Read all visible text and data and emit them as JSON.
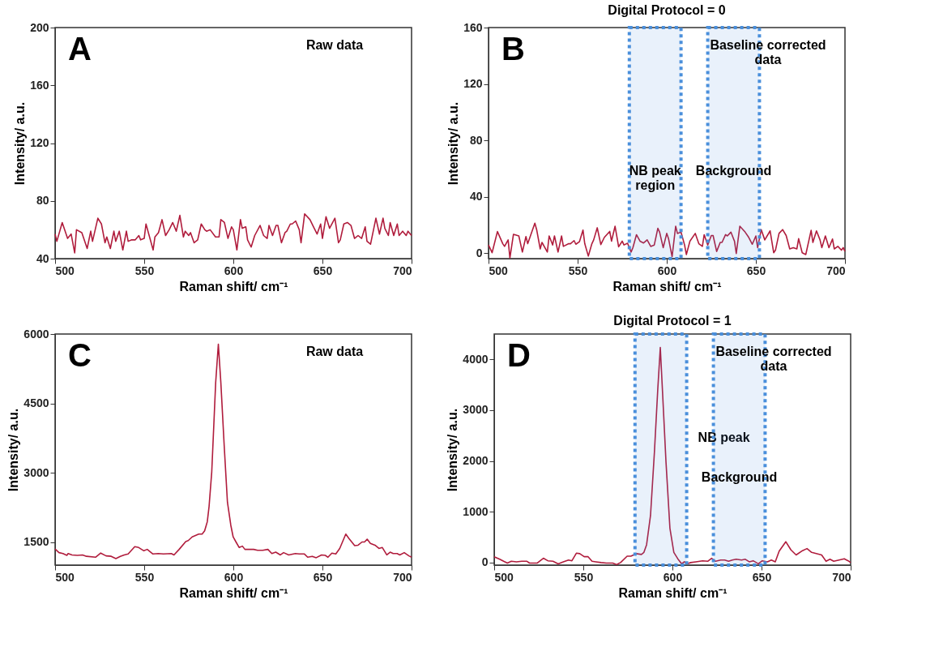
{
  "chart_data": [
    {
      "type": "line",
      "xlabel": "Raman shift/ cm⁻¹",
      "ylabel": "Intensity/ a.u.",
      "xlim": [
        500,
        700
      ],
      "xticks": [
        500,
        550,
        600,
        650,
        700
      ],
      "ylim": [
        40,
        200
      ],
      "yticks": [
        40,
        80,
        120,
        160,
        200
      ],
      "grid": false,
      "annotations": [
        "A",
        "Raw data"
      ],
      "x": [
        500,
        501,
        504,
        507,
        509,
        511,
        512,
        515,
        518,
        520,
        521,
        524,
        526,
        528,
        529,
        531,
        533,
        534,
        536,
        538,
        540,
        541,
        543,
        545,
        547,
        548,
        550,
        551,
        553,
        555,
        556,
        558,
        560,
        562,
        564,
        566,
        568,
        570,
        572,
        573,
        575,
        576,
        578,
        580,
        582,
        584,
        585,
        587,
        590,
        592,
        593,
        595,
        597,
        599,
        600,
        602,
        604,
        605,
        607,
        608,
        610,
        612,
        615,
        617,
        619,
        620,
        622,
        624,
        625,
        627,
        629,
        630,
        632,
        633,
        635,
        637,
        638,
        640,
        643,
        645,
        647,
        649,
        650,
        652,
        654,
        657,
        659,
        660,
        662,
        664,
        666,
        668,
        670,
        672,
        674,
        675,
        677,
        680,
        682,
        684,
        685,
        687,
        688,
        690,
        692,
        693,
        695,
        697,
        698,
        700
      ],
      "series": [
        {
          "color": "#b01c3c",
          "values": [
            57,
            52,
            65,
            54,
            57,
            44,
            60,
            58,
            47,
            59,
            52,
            68,
            64,
            51,
            55,
            47,
            59,
            52,
            59,
            46,
            59,
            52,
            53,
            53,
            56,
            53,
            54,
            64,
            55,
            46,
            55,
            58,
            67,
            56,
            60,
            65,
            59,
            70,
            55,
            59,
            56,
            58,
            51,
            53,
            64,
            60,
            59,
            60,
            55,
            55,
            67,
            65,
            54,
            62,
            60,
            46,
            67,
            61,
            62,
            53,
            48,
            56,
            63,
            56,
            54,
            63,
            56,
            63,
            63,
            51,
            58,
            59,
            64,
            64,
            66,
            60,
            51,
            71,
            67,
            62,
            57,
            64,
            54,
            69,
            61,
            68,
            51,
            53,
            64,
            65,
            63,
            54,
            56,
            54,
            62,
            52,
            50,
            68,
            57,
            68,
            61,
            56,
            65,
            56,
            64,
            56,
            59,
            56,
            59,
            56
          ]
        }
      ]
    },
    {
      "type": "line",
      "title": "Digital Protocol = 0",
      "xlabel": "Raman shift/ cm⁻¹",
      "ylabel": "Intensity/ a.u.",
      "xlim": [
        500,
        700
      ],
      "xticks": [
        500,
        550,
        600,
        650,
        700
      ],
      "ylim": [
        -4,
        160
      ],
      "yticks": [
        0,
        40,
        80,
        120,
        160
      ],
      "grid": false,
      "annotations": [
        "B",
        "Baseline corrected\ndata"
      ],
      "bands": [
        {
          "axis": "x",
          "from": 579,
          "to": 608,
          "color": "#4a8fdb",
          "label": "NB peak\nregion"
        },
        {
          "axis": "x",
          "from": 623,
          "to": 652,
          "color": "#4a8fdb",
          "label": "Background"
        }
      ],
      "x": [
        500,
        502,
        505,
        508,
        509,
        511,
        512,
        514,
        517,
        519,
        521,
        522,
        526,
        527,
        529,
        530,
        533,
        534,
        536,
        537,
        539,
        541,
        542,
        545,
        546,
        548,
        549,
        551,
        553,
        554,
        556,
        558,
        559,
        561,
        563,
        565,
        568,
        569,
        571,
        573,
        575,
        576,
        578,
        580,
        581,
        583,
        585,
        587,
        589,
        591,
        593,
        595,
        596,
        598,
        600,
        601,
        603,
        605,
        606,
        608,
        610,
        611,
        613,
        616,
        618,
        620,
        621,
        623,
        625,
        626,
        628,
        630,
        631,
        633,
        634,
        636,
        638,
        639,
        641,
        644,
        646,
        648,
        650,
        651,
        653,
        655,
        658,
        660,
        661,
        663,
        665,
        667,
        669,
        671,
        673,
        674,
        676,
        678,
        681,
        682,
        684,
        686,
        687,
        689,
        691,
        693,
        694,
        696,
        698,
        699,
        700
      ],
      "series": [
        {
          "color": "#b01c3c",
          "values": [
            5.7,
            0.2,
            15.2,
            6.6,
            4.7,
            9.3,
            -3.5,
            13.3,
            12.1,
            0.7,
            11.7,
            6.6,
            21.2,
            16.6,
            2.9,
            7.5,
            0.7,
            12.1,
            5.7,
            12.1,
            0.7,
            12.1,
            4.7,
            6.6,
            6.6,
            8.8,
            6.2,
            8.0,
            16.3,
            6.6,
            -2.2,
            6.6,
            9.3,
            17.9,
            6.0,
            11.1,
            15.3,
            8.4,
            19.0,
            4.4,
            8.4,
            5.7,
            6.9,
            0.7,
            3.8,
            13.0,
            8.4,
            7.1,
            9.3,
            4.7,
            5.7,
            17.5,
            14.8,
            3.8,
            13.9,
            10.2,
            -2.6,
            19.0,
            13.9,
            14.8,
            5.7,
            -1.1,
            8.4,
            13.9,
            6.6,
            4.7,
            13.0,
            5.7,
            12.4,
            12.4,
            1.1,
            7.5,
            7.5,
            13.0,
            12.1,
            14.8,
            8.4,
            -0.4,
            19.0,
            14.8,
            11.1,
            6.2,
            12.1,
            3.8,
            16.6,
            9.3,
            15.7,
            0.2,
            2.0,
            13.9,
            16.6,
            12.4,
            2.9,
            3.8,
            2.9,
            10.2,
            0.2,
            -1.1,
            16.1,
            7.5,
            15.7,
            9.3,
            3.8,
            12.1,
            3.8,
            9.9,
            2.9,
            4.7,
            2.0,
            3.8,
            1.1
          ]
        }
      ]
    },
    {
      "type": "line",
      "xlabel": "Raman shift/ cm⁻¹",
      "ylabel": "Intensity/ a.u.",
      "xlim": [
        500,
        700
      ],
      "xticks": [
        500,
        550,
        600,
        650,
        700
      ],
      "ylim": [
        1000,
        6000
      ],
      "yticks": [
        1500,
        3000,
        4500,
        6000
      ],
      "grid": false,
      "annotations": [
        "C",
        "Raw data"
      ],
      "x": [
        500,
        502.2,
        504.4,
        506.6,
        507.3,
        509.5,
        512.5,
        515.4,
        517.6,
        522.7,
        525.6,
        528.6,
        531.5,
        534.1,
        536.6,
        538.8,
        541.0,
        544.7,
        546.9,
        549.8,
        551.7,
        554.9,
        557.9,
        560.8,
        565.2,
        566.7,
        569.6,
        573.3,
        574.7,
        576.9,
        580.6,
        582.5,
        583.9,
        585.4,
        586.4,
        587.9,
        590.1,
        591.6,
        593.0,
        594.9,
        596.7,
        598.6,
        599.9,
        601.5,
        603.3,
        605.1,
        606.5,
        609.2,
        611.4,
        613.6,
        616.5,
        619.4,
        621.6,
        623.8,
        626.4,
        628.2,
        631.1,
        634.8,
        637.0,
        639.9,
        641.7,
        644.3,
        646.5,
        649.5,
        651.6,
        653.1,
        655.3,
        657.5,
        659.7,
        663.1,
        664.8,
        668.1,
        670.0,
        672.2,
        673.6,
        675.1,
        676.9,
        679.5,
        681.7,
        683.6,
        686.1,
        688.0,
        689.7,
        691.9,
        693.4,
        695.9,
        698.5,
        700
      ],
      "series": [
        {
          "color": "#b01c3c",
          "values": [
            1350,
            1270,
            1250,
            1210,
            1250,
            1220,
            1210,
            1220,
            1190,
            1170,
            1260,
            1200,
            1190,
            1140,
            1190,
            1220,
            1240,
            1400,
            1380,
            1310,
            1340,
            1240,
            1250,
            1240,
            1250,
            1220,
            1340,
            1510,
            1530,
            1610,
            1670,
            1670,
            1740,
            1940,
            2270,
            3020,
            4950,
            5780,
            4950,
            3570,
            2360,
            1860,
            1610,
            1500,
            1380,
            1410,
            1340,
            1340,
            1340,
            1320,
            1320,
            1340,
            1250,
            1280,
            1220,
            1270,
            1220,
            1250,
            1240,
            1240,
            1170,
            1190,
            1160,
            1220,
            1210,
            1170,
            1260,
            1240,
            1360,
            1670,
            1580,
            1420,
            1430,
            1500,
            1500,
            1560,
            1470,
            1430,
            1360,
            1380,
            1220,
            1280,
            1250,
            1250,
            1220,
            1270,
            1200,
            1170
          ]
        }
      ]
    },
    {
      "type": "line",
      "title": "Digital Protocol = 1",
      "xlabel": "Raman shift/ cm⁻¹",
      "ylabel": "Intensity/ a.u.",
      "xlim": [
        500,
        700
      ],
      "xticks": [
        500,
        550,
        600,
        650,
        700
      ],
      "ylim": [
        -50,
        4500
      ],
      "yticks": [
        0,
        1000,
        2000,
        3000,
        4000
      ],
      "grid": false,
      "annotations": [
        "D",
        "Baseline corrected\ndata"
      ],
      "bands": [
        {
          "axis": "x",
          "from": 579,
          "to": 608,
          "color": "#4a8fdb",
          "label": "NB peak"
        },
        {
          "axis": "x",
          "from": 623,
          "to": 652,
          "color": "#4a8fdb",
          "label": "Background"
        }
      ],
      "x": [
        500,
        503.1,
        505.3,
        507.4,
        509.6,
        512.5,
        515.5,
        518.4,
        519.8,
        524.2,
        527.6,
        530.1,
        533.0,
        535.9,
        538.8,
        541.7,
        543.6,
        546.1,
        548.0,
        550.5,
        552.7,
        554.9,
        557.0,
        560.0,
        562.9,
        566.5,
        568.7,
        570.9,
        574.6,
        576.7,
        579.7,
        582.6,
        584.0,
        585.5,
        587.7,
        589.9,
        591.8,
        593.2,
        594.5,
        596.4,
        598.6,
        600.8,
        603.0,
        605.2,
        606.7,
        608.1,
        610.3,
        613.2,
        616.9,
        619.8,
        622.0,
        624.2,
        627.1,
        629.3,
        631.5,
        633.6,
        635.8,
        638.8,
        640.9,
        643.1,
        645.3,
        648.2,
        650.4,
        653.3,
        655.5,
        657.7,
        659.9,
        663.6,
        666.5,
        669.4,
        673.0,
        675.5,
        678.1,
        681.1,
        683.7,
        686.2,
        688.4,
        690.5,
        693.5,
        696.4,
        698.6,
        700
      ],
      "series": [
        {
          "color": "#b01c3c",
          "values": [
            115,
            65,
            25,
            -10,
            25,
            15,
            25,
            25,
            -10,
            -10,
            85,
            35,
            25,
            -25,
            15,
            50,
            35,
            185,
            175,
            115,
            115,
            25,
            15,
            0,
            -10,
            -10,
            -40,
            0,
            125,
            125,
            175,
            160,
            200,
            350,
            925,
            2175,
            3425,
            4235,
            3325,
            1975,
            675,
            200,
            75,
            -25,
            15,
            -25,
            0,
            15,
            35,
            25,
            85,
            25,
            50,
            50,
            25,
            50,
            65,
            50,
            65,
            15,
            35,
            -25,
            35,
            15,
            50,
            15,
            225,
            410,
            250,
            150,
            235,
            275,
            200,
            175,
            150,
            25,
            65,
            25,
            50,
            75,
            35,
            0
          ]
        }
      ]
    }
  ]
}
